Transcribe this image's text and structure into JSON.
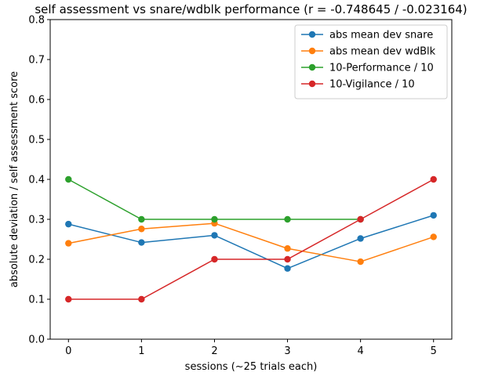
{
  "chart_data": {
    "type": "line",
    "title": "self assessment vs snare/wdblk performance (r = -0.748645 / -0.023164)",
    "xlabel": "sessions (~25 trials each)",
    "ylabel": "absolute deviation / self assessment score",
    "x": [
      0,
      1,
      2,
      3,
      4,
      5
    ],
    "xticks": [
      "0",
      "1",
      "2",
      "3",
      "4",
      "5"
    ],
    "xlim": [
      -0.25,
      5.25
    ],
    "ylim": [
      0,
      0.8
    ],
    "yticks": [
      "0.0",
      "0.1",
      "0.2",
      "0.3",
      "0.4",
      "0.5",
      "0.6",
      "0.7",
      "0.8"
    ],
    "grid": false,
    "legend_position": "upper right",
    "series": [
      {
        "name": "abs mean dev snare",
        "color": "#1f77b4",
        "x": [
          0,
          1,
          2,
          3,
          4,
          5
        ],
        "values": [
          0.288,
          0.242,
          0.26,
          0.177,
          0.252,
          0.31
        ]
      },
      {
        "name": "abs mean dev wdBlk",
        "color": "#ff7f0e",
        "x": [
          0,
          1,
          2,
          3,
          4,
          5
        ],
        "values": [
          0.24,
          0.276,
          0.29,
          0.227,
          0.194,
          0.256
        ]
      },
      {
        "name": "10-Performance / 10",
        "color": "#2ca02c",
        "x": [
          0,
          1,
          2,
          3,
          4
        ],
        "values": [
          0.4,
          0.3,
          0.3,
          0.3,
          0.3
        ]
      },
      {
        "name": "10-Vigilance / 10",
        "color": "#d62728",
        "x": [
          0,
          1,
          2,
          3,
          4,
          5
        ],
        "values": [
          0.1,
          0.1,
          0.2,
          0.2,
          0.3,
          0.4
        ]
      }
    ]
  }
}
